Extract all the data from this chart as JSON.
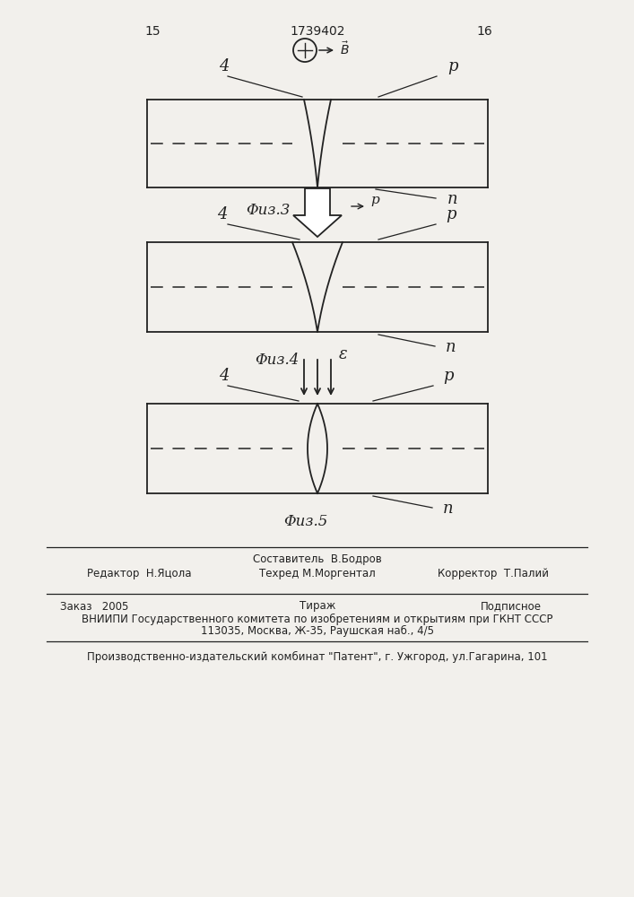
{
  "bg_color": "#f2f0ec",
  "page_num_left": "15",
  "page_num_right": "16",
  "patent_number": "1739402",
  "fig3_label": "Φиз.3",
  "fig4_label": "Φиз.4",
  "fig5_label": "Φиз.5",
  "footer_line1": "Составитель  В.Бодров",
  "footer_editor": "Редактор  Н.Яцола",
  "footer_techred": "Техред М.Моргентал",
  "footer_corrector": "Корректор  Т.Палий",
  "footer_order": "Заказ   2005",
  "footer_tirazh": "Тираж",
  "footer_podpisnoe": "Подписное",
  "footer_vniipи": "ВНИИПИ Государственного комитета по изобретениям и открытиям при ГКНТ СССР",
  "footer_address": "113035, Москва, Ж-35, Раушская наб., 4/5",
  "footer_producer": "Производственно-издательский комбинат \"Патент\", г. Ужгород, ул.Гагарина, 101"
}
